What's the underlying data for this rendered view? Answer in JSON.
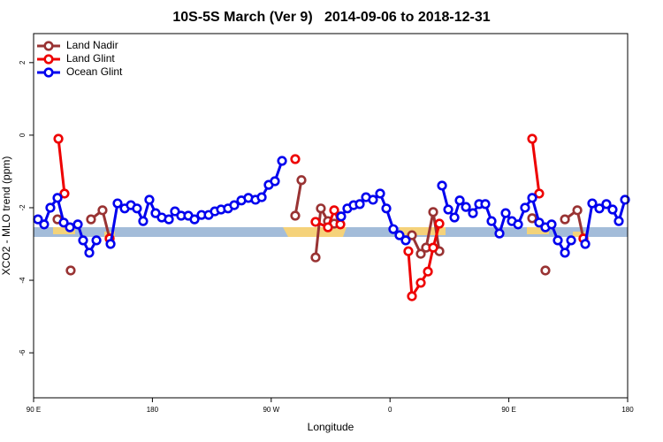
{
  "chart_data": {
    "type": "line",
    "title": "10S-5S March (Ver 9)   2014-09-06 to 2018-12-31",
    "x_label": "Longitude",
    "y_label": "XCO2 - MLO trend (ppm)",
    "xlim": [
      90,
      540
    ],
    "ylim": [
      -7.24,
      2.8
    ],
    "xticks": [
      {
        "value": 90,
        "label": "90 E"
      },
      {
        "value": 180,
        "label": "180"
      },
      {
        "value": 270,
        "label": "90 W"
      },
      {
        "value": 360,
        "label": "0"
      },
      {
        "value": 450,
        "label": "90 E"
      },
      {
        "value": 540,
        "label": "180"
      }
    ],
    "yticks": [
      2,
      0,
      -2,
      -4,
      -6
    ],
    "legend": "top-left",
    "series": [
      {
        "name": "Land Nadir",
        "color": "#993333",
        "x": [
          108.1,
          null,
          118.1,
          null,
          133.5,
          142.2,
          147.6,
          null,
          288.2,
          292.9,
          null,
          303.6,
          307.6,
          313.0,
          317.7,
          322.4,
          null,
          376.6,
          383.3,
          387.3,
          392.7,
          397.4,
          null,
          467.7,
          null,
          477.7,
          null,
          492.5,
          501.9,
          506.5
        ],
        "values": [
          -2.32,
          null,
          -3.73,
          null,
          -2.32,
          -2.07,
          -2.85,
          null,
          -2.22,
          -1.24,
          null,
          -3.37,
          -2.02,
          -2.37,
          -2.44,
          -2.24,
          null,
          -2.76,
          -3.27,
          -3.1,
          -2.12,
          -3.2,
          null,
          -2.29,
          null,
          -3.73,
          null,
          -2.32,
          -2.07,
          -2.85
        ]
      },
      {
        "name": "Land Glint",
        "color": "#ee0000",
        "x": [
          108.8,
          113.4,
          null,
          147.6,
          null,
          288.2,
          null,
          303.6,
          313.0,
          317.7,
          322.4,
          null,
          373.9,
          376.6,
          383.3,
          388.7,
          392.7,
          397.4,
          null,
          467.7,
          473.0,
          null,
          506.5
        ],
        "values": [
          -0.1,
          -1.61,
          null,
          -2.85,
          null,
          -0.66,
          null,
          -2.39,
          -2.54,
          -2.07,
          -2.46,
          null,
          -3.2,
          -4.44,
          -4.07,
          -3.76,
          -3.1,
          -2.44,
          null,
          -0.1,
          -1.61,
          null,
          -2.85
        ]
      },
      {
        "name": "Ocean Glint",
        "color": "#0000ee",
        "x": [
          93.3,
          98.0,
          102.7,
          108.1,
          112.8,
          117.5,
          123.5,
          127.5,
          132.2,
          137.6,
          null,
          148.3,
          153.6,
          159.0,
          163.7,
          168.3,
          173.0,
          177.7,
          182.4,
          187.1,
          192.5,
          197.1,
          201.8,
          207.2,
          211.9,
          217.2,
          222.6,
          227.3,
          232.0,
          237.3,
          242.0,
          247.4,
          252.7,
          258.1,
          262.8,
          268.1,
          272.8,
          278.2,
          null,
          323.0,
          327.7,
          332.4,
          337.1,
          341.8,
          347.1,
          352.5,
          357.2,
          362.5,
          367.2,
          371.9,
          null,
          399.4,
          404.1,
          408.8,
          412.8,
          417.5,
          422.8,
          427.5,
          432.2,
          436.9,
          442.9,
          447.6,
          452.3,
          457.0,
          462.3,
          467.7,
          473.0,
          477.7,
          482.4,
          487.1,
          492.5,
          497.2,
          null,
          507.9,
          513.2,
          518.6,
          523.9,
          528.6,
          533.3,
          538.0
        ],
        "values": [
          -2.32,
          -2.46,
          -2.0,
          -1.73,
          -2.41,
          -2.54,
          -2.46,
          -2.9,
          -3.24,
          -2.9,
          null,
          -3.0,
          -1.88,
          -2.02,
          -1.93,
          -2.02,
          -2.37,
          -1.78,
          -2.15,
          -2.27,
          -2.32,
          -2.1,
          -2.22,
          -2.22,
          -2.32,
          -2.2,
          -2.2,
          -2.1,
          -2.05,
          -2.02,
          -1.93,
          -1.8,
          -1.73,
          -1.78,
          -1.71,
          -1.37,
          -1.27,
          -0.71,
          null,
          -2.24,
          -2.02,
          -1.93,
          -1.9,
          -1.71,
          -1.78,
          -1.61,
          -2.02,
          -2.59,
          -2.76,
          -2.9,
          null,
          -1.39,
          -2.05,
          -2.27,
          -1.8,
          -1.98,
          -2.15,
          -1.9,
          -1.9,
          -2.37,
          -2.71,
          -2.15,
          -2.37,
          -2.46,
          -2.0,
          -1.73,
          -2.41,
          -2.54,
          -2.46,
          -2.9,
          -3.24,
          -2.9,
          null,
          -3.0,
          -1.88,
          -2.02,
          -1.9,
          -2.05,
          -2.37,
          -1.78
        ]
      }
    ]
  }
}
